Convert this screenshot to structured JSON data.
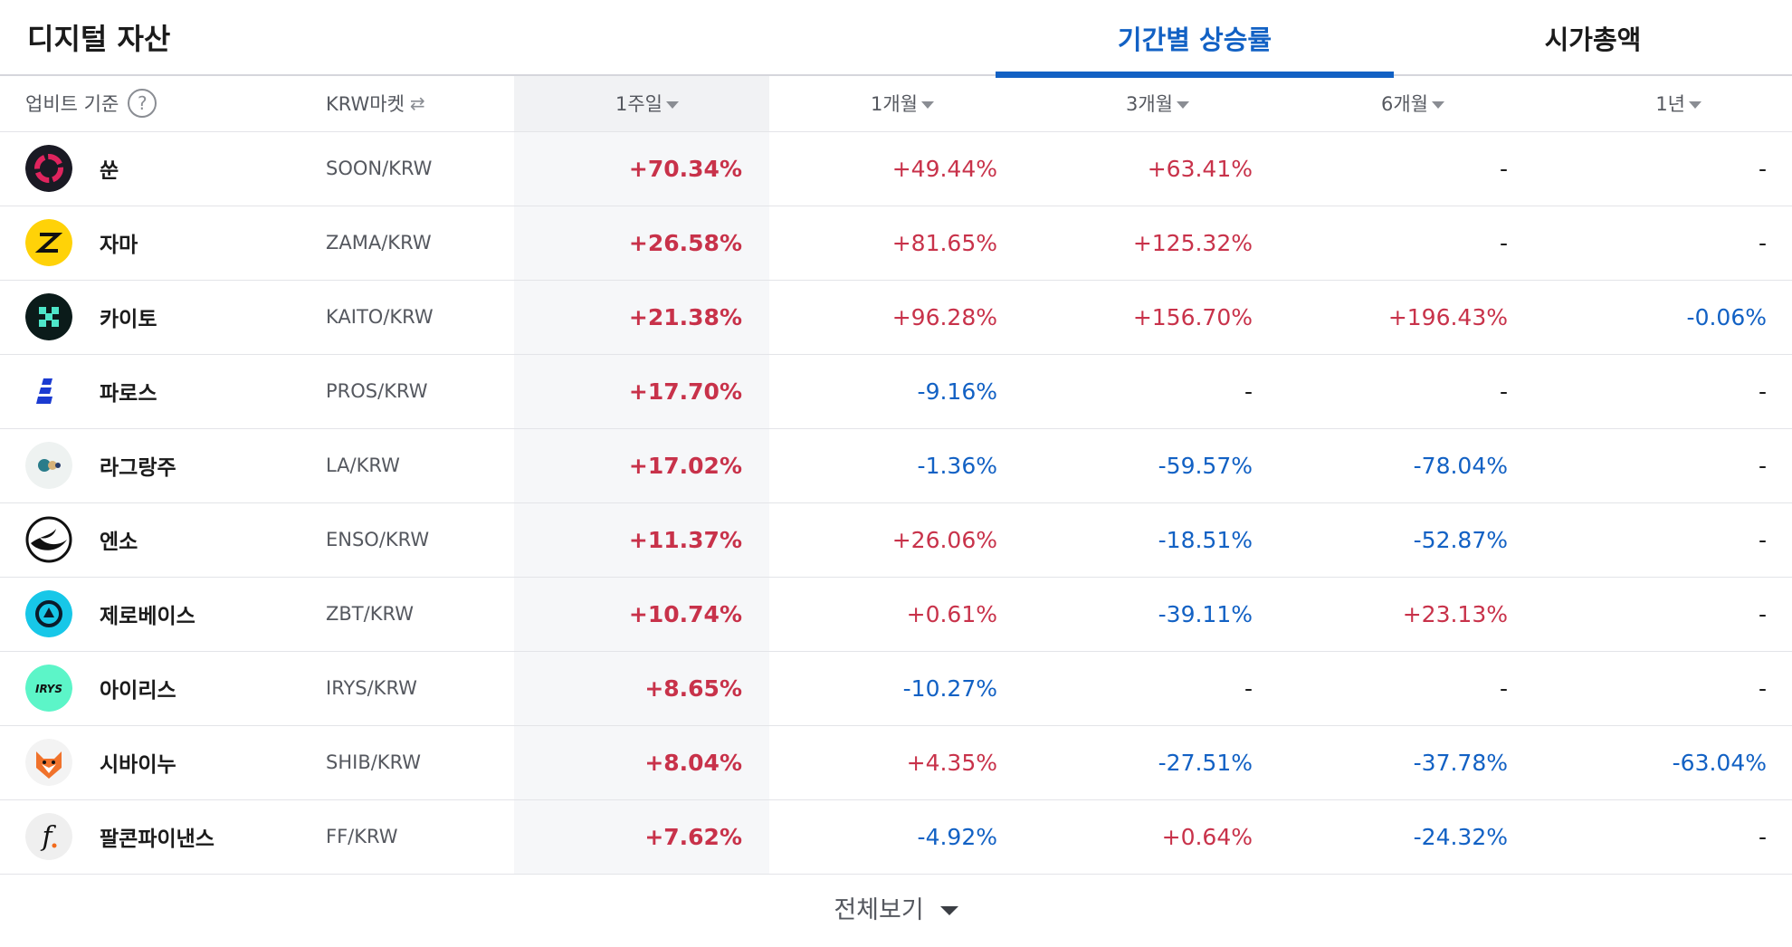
{
  "header": {
    "title": "디지털 자산",
    "tabs": [
      {
        "label": "기간별 상승률",
        "active": true
      },
      {
        "label": "시가총액",
        "active": false
      }
    ]
  },
  "columns": {
    "basis": "업비트 기준",
    "market": "KRW마켓",
    "w1": "1주일",
    "m1": "1개월",
    "m3": "3개월",
    "m6": "6개월",
    "y1": "1년"
  },
  "colors": {
    "up": "#d60000",
    "down": "#1261c4",
    "accent": "#1261c4"
  },
  "rows": [
    {
      "name": "쑨",
      "pair": "SOON/KRW",
      "icon": "soon-logo-icon",
      "w1": "+70.34%",
      "m1": "+49.44%",
      "m3": "+63.41%",
      "m6": "-",
      "y1": "-"
    },
    {
      "name": "자마",
      "pair": "ZAMA/KRW",
      "icon": "zama-logo-icon",
      "w1": "+26.58%",
      "m1": "+81.65%",
      "m3": "+125.32%",
      "m6": "-",
      "y1": "-"
    },
    {
      "name": "카이토",
      "pair": "KAITO/KRW",
      "icon": "kaito-logo-icon",
      "w1": "+21.38%",
      "m1": "+96.28%",
      "m3": "+156.70%",
      "m6": "+196.43%",
      "y1": "-0.06%"
    },
    {
      "name": "파로스",
      "pair": "PROS/KRW",
      "icon": "pharos-logo-icon",
      "w1": "+17.70%",
      "m1": "-9.16%",
      "m3": "-",
      "m6": "-",
      "y1": "-"
    },
    {
      "name": "라그랑주",
      "pair": "LA/KRW",
      "icon": "lagrange-logo-icon",
      "w1": "+17.02%",
      "m1": "-1.36%",
      "m3": "-59.57%",
      "m6": "-78.04%",
      "y1": "-"
    },
    {
      "name": "엔소",
      "pair": "ENSO/KRW",
      "icon": "enso-logo-icon",
      "w1": "+11.37%",
      "m1": "+26.06%",
      "m3": "-18.51%",
      "m6": "-52.87%",
      "y1": "-"
    },
    {
      "name": "제로베이스",
      "pair": "ZBT/KRW",
      "icon": "zerobase-logo-icon",
      "w1": "+10.74%",
      "m1": "+0.61%",
      "m3": "-39.11%",
      "m6": "+23.13%",
      "y1": "-"
    },
    {
      "name": "아이리스",
      "pair": "IRYS/KRW",
      "icon": "irys-logo-icon",
      "w1": "+8.65%",
      "m1": "-10.27%",
      "m3": "-",
      "m6": "-",
      "y1": "-"
    },
    {
      "name": "시바이누",
      "pair": "SHIB/KRW",
      "icon": "shib-logo-icon",
      "w1": "+8.04%",
      "m1": "+4.35%",
      "m3": "-27.51%",
      "m6": "-37.78%",
      "y1": "-63.04%"
    },
    {
      "name": "팔콘파이낸스",
      "pair": "FF/KRW",
      "icon": "falcon-finance-logo-icon",
      "w1": "+7.62%",
      "m1": "-4.92%",
      "m3": "+0.64%",
      "m6": "-24.32%",
      "y1": "-"
    }
  ],
  "footer": {
    "view_all": "전체보기"
  }
}
